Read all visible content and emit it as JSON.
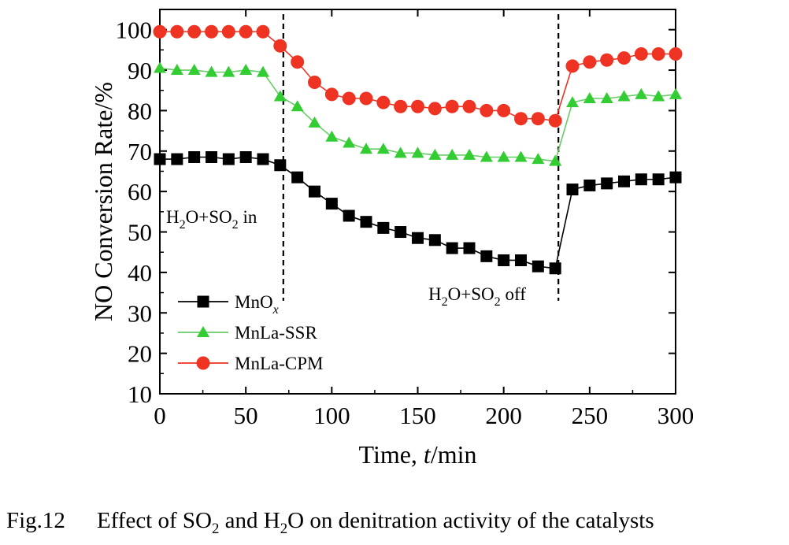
{
  "chart_data": {
    "type": "line",
    "xlabel": "Time, t/min",
    "xlabel_parts": {
      "pre": "Time, ",
      "var": "t",
      "post": "/min"
    },
    "ylabel": "NO Conversion Rate/%",
    "xlim": [
      0,
      300
    ],
    "ylim": [
      10,
      105
    ],
    "xticks": [
      0,
      50,
      100,
      150,
      200,
      250,
      300
    ],
    "yticks": [
      10,
      20,
      30,
      40,
      50,
      60,
      70,
      80,
      90,
      100
    ],
    "grid": false,
    "legend_position": "bottom-left",
    "vlines": [
      70,
      230
    ],
    "annotations": [
      {
        "text": "H2O+SO2 in",
        "parts": [
          "H",
          "2",
          "O+SO",
          "2",
          " in"
        ],
        "x": 0,
        "y": 50
      },
      {
        "text": "H2O+SO2 off",
        "parts": [
          "H",
          "2",
          "O+SO",
          "2",
          " off"
        ],
        "x": 158,
        "y": 42
      }
    ],
    "series": [
      {
        "name": "MnOx",
        "label_parts": [
          "MnO",
          "x"
        ],
        "color": "#000000",
        "line_color": "#000000",
        "marker": "square",
        "x": [
          0,
          10,
          20,
          30,
          40,
          50,
          60,
          70,
          80,
          90,
          100,
          110,
          120,
          130,
          140,
          150,
          160,
          170,
          180,
          190,
          200,
          210,
          220,
          230,
          240,
          250,
          260,
          270,
          280,
          290,
          300
        ],
        "y": [
          68,
          68,
          68.5,
          68.5,
          68,
          68.5,
          68,
          66.5,
          63.5,
          60,
          57,
          54,
          52.5,
          51,
          50,
          48.5,
          48,
          46,
          46,
          44,
          43,
          43,
          41.5,
          41,
          60.5,
          61.5,
          62,
          62.5,
          63,
          63,
          63.5
        ]
      },
      {
        "name": "MnLa-SSR",
        "label_parts": [
          "MnLa-SSR"
        ],
        "color": "#33cc33",
        "line_color": "#66cc66",
        "marker": "triangle",
        "x": [
          0,
          10,
          20,
          30,
          40,
          50,
          60,
          70,
          80,
          90,
          100,
          110,
          120,
          130,
          140,
          150,
          160,
          170,
          180,
          190,
          200,
          210,
          220,
          230,
          240,
          250,
          260,
          270,
          280,
          290,
          300
        ],
        "y": [
          90.5,
          90,
          90,
          89.5,
          89.5,
          90,
          89.5,
          83.5,
          81,
          77,
          73.5,
          72,
          70.5,
          70.5,
          69.5,
          69.5,
          69,
          69,
          69,
          68.5,
          68.5,
          68.5,
          68,
          67.5,
          82,
          83,
          83,
          83.5,
          84,
          83.5,
          84
        ]
      },
      {
        "name": "MnLa-CPM",
        "label_parts": [
          "MnLa-CPM"
        ],
        "color": "#ee3322",
        "line_color": "#ee3322",
        "marker": "circle",
        "x": [
          0,
          10,
          20,
          30,
          40,
          50,
          60,
          70,
          80,
          90,
          100,
          110,
          120,
          130,
          140,
          150,
          160,
          170,
          180,
          190,
          200,
          210,
          220,
          230,
          240,
          250,
          260,
          270,
          280,
          290,
          300
        ],
        "y": [
          99.5,
          99.5,
          99.5,
          99.5,
          99.5,
          99.5,
          99.5,
          96,
          92,
          87,
          84,
          83,
          83,
          82,
          81,
          81,
          80.5,
          81,
          81,
          80,
          80,
          78,
          78,
          77.5,
          91,
          92,
          92.5,
          93,
          94,
          94,
          94
        ]
      }
    ]
  },
  "caption": {
    "number": "Fig.12",
    "text": "Effect of SO2 and H2O on denitration activity of the catalysts",
    "parts": [
      "Effect of SO",
      "2",
      " and H",
      "2",
      "O on denitration activity of the catalysts"
    ]
  }
}
